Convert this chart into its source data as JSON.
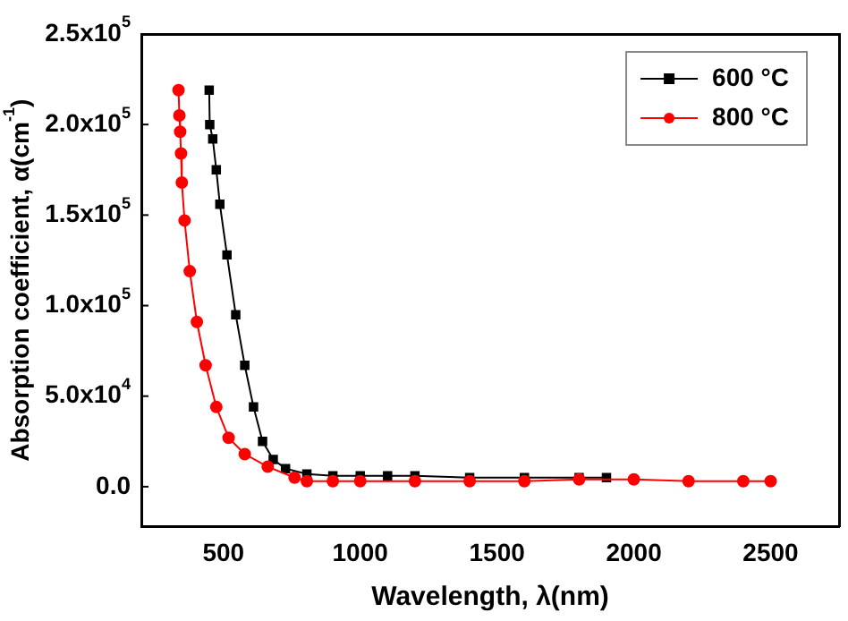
{
  "chart_data": {
    "type": "line",
    "xlabel": "Wavelength, λ(nm)",
    "ylabel": "Absorption coefficient, α(cm$^{-1}$)",
    "xlim": [
      200,
      2750
    ],
    "xticks": [
      500,
      1000,
      1500,
      2000,
      2500
    ],
    "ylim": [
      -22000,
      250000
    ],
    "yticks": [
      {
        "value": 0,
        "label": "0.0"
      },
      {
        "value": 50000,
        "label": "5.0x10$^{4}$"
      },
      {
        "value": 100000,
        "label": "1.0x10$^{5}$"
      },
      {
        "value": 150000,
        "label": "1.5x10$^{5}$"
      },
      {
        "value": 200000,
        "label": "2.0x10$^{5}$"
      },
      {
        "value": 250000,
        "label": "2.5x10$^{5}$"
      }
    ],
    "grid": false,
    "legend": "top right",
    "line_style": "solid",
    "series": [
      {
        "name": "600 °C",
        "color": "#000000",
        "marker": "square",
        "x": [
          448,
          450,
          461,
          474,
          487,
          513,
          545,
          578,
          610,
          643,
          682,
          727,
          805,
          900,
          1000,
          1100,
          1200,
          1400,
          1600,
          1800,
          1900
        ],
        "values": [
          219000,
          200000,
          192000,
          175000,
          156000,
          128000,
          95000,
          67000,
          44000,
          25000,
          15000,
          10000,
          7000,
          6000,
          6000,
          6000,
          6000,
          5000,
          5000,
          5000,
          5000
        ]
      },
      {
        "name": "800 °C",
        "color": "#ff0000",
        "marker": "circle",
        "x": [
          336,
          339,
          342,
          345,
          348,
          358,
          377,
          403,
          435,
          474,
          519,
          578,
          662,
          760,
          805,
          900,
          1000,
          1200,
          1400,
          1600,
          1800,
          2000,
          2200,
          2400,
          2500
        ],
        "values": [
          219000,
          205000,
          196000,
          184000,
          168000,
          147000,
          119000,
          91000,
          67000,
          44000,
          27000,
          18000,
          11000,
          5000,
          3000,
          3000,
          3000,
          3000,
          3000,
          3000,
          4000,
          4000,
          3000,
          3000,
          3000
        ]
      }
    ]
  }
}
